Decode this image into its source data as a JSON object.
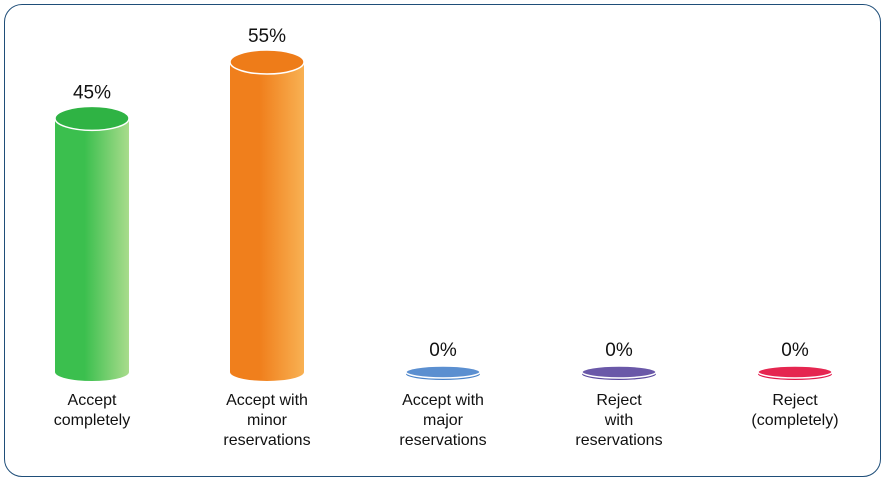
{
  "chart_data": {
    "type": "bar",
    "categories": [
      [
        "Accept",
        "completely"
      ],
      [
        "Accept with",
        "minor",
        "reservations"
      ],
      [
        "Accept with",
        "major",
        "reservations"
      ],
      [
        "Reject",
        "with",
        "reservations"
      ],
      [
        "Reject",
        "(completely)"
      ]
    ],
    "values": [
      45,
      55,
      0,
      0,
      0
    ],
    "value_labels": [
      "45%",
      "55%",
      "0%",
      "0%",
      "0%"
    ],
    "unit": "%",
    "ylim": [
      0,
      55
    ],
    "grid": false,
    "legend": "none",
    "colors": [
      {
        "base": "#3bbf4e",
        "light": "#a9dc8c",
        "top": "#2fb344"
      },
      {
        "base": "#f07f1c",
        "light": "#f8b153",
        "top": "#ee7c19"
      },
      {
        "base": "#4a83c9",
        "light": "#8db5e4",
        "top": "#5b8fd0"
      },
      {
        "base": "#5c4a9e",
        "light": "#9385c6",
        "top": "#6a58a8"
      },
      {
        "base": "#e2184a",
        "light": "#f25f82",
        "top": "#e52650"
      }
    ],
    "frame_color": "#1f4e79"
  }
}
